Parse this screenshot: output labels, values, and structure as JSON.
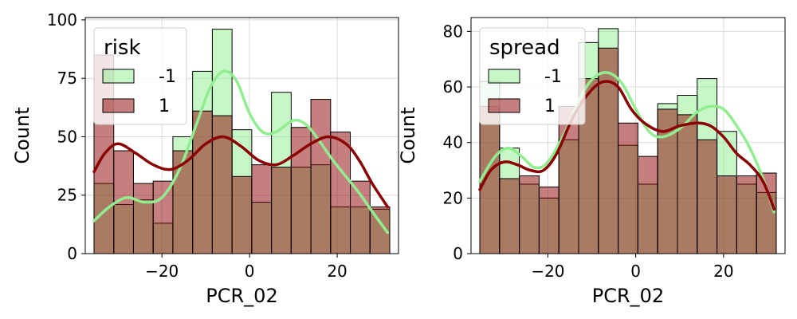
{
  "chart_data": [
    {
      "type": "histogram",
      "xlabel": "PCR_02",
      "ylabel": "Count",
      "xlim": [
        -37.5,
        34.0
      ],
      "ylim": [
        0,
        101
      ],
      "xticks": [
        -20,
        0,
        20
      ],
      "yticks": [
        0,
        25,
        50,
        75,
        100
      ],
      "grid": true,
      "bin_edges": [
        -35.5,
        -31.0,
        -26.5,
        -22.0,
        -17.5,
        -13.0,
        -8.5,
        -4.0,
        0.5,
        5.0,
        9.5,
        14.0,
        18.5,
        23.0,
        27.5,
        32.0
      ],
      "legend": {
        "title": "risk",
        "placement": "top-left"
      },
      "series": [
        {
          "name": "-1",
          "fill": "#90ee90",
          "kde": "#90ee90",
          "counts": [
            30,
            21,
            23,
            13,
            50,
            78,
            96,
            53,
            22,
            69,
            37,
            38,
            20,
            20,
            19
          ],
          "kde_curve": [
            [
              -35.5,
              14
            ],
            [
              -32,
              20
            ],
            [
              -28,
              24
            ],
            [
              -24,
              22
            ],
            [
              -20,
              24
            ],
            [
              -16,
              36
            ],
            [
              -12,
              56
            ],
            [
              -9,
              71
            ],
            [
              -6,
              78
            ],
            [
              -3,
              74
            ],
            [
              0,
              60
            ],
            [
              3,
              52
            ],
            [
              6,
              52
            ],
            [
              10,
              57
            ],
            [
              13,
              55
            ],
            [
              16,
              48
            ],
            [
              19,
              40
            ],
            [
              22,
              33
            ],
            [
              25,
              26
            ],
            [
              28,
              18
            ],
            [
              31.5,
              9
            ]
          ]
        },
        {
          "name": "1",
          "fill": "#8b0000",
          "kde": "#8b0000",
          "counts": [
            85,
            44,
            30,
            31,
            44,
            61,
            59,
            33,
            38,
            37,
            54,
            66,
            52,
            31,
            20
          ],
          "kde_curve": [
            [
              -35.5,
              35
            ],
            [
              -33,
              43
            ],
            [
              -30,
              47
            ],
            [
              -26,
              43
            ],
            [
              -22,
              38
            ],
            [
              -18,
              36
            ],
            [
              -14,
              40
            ],
            [
              -10,
              47
            ],
            [
              -6,
              50
            ],
            [
              -2,
              46
            ],
            [
              2,
              40
            ],
            [
              6,
              38
            ],
            [
              10,
              42
            ],
            [
              14,
              47
            ],
            [
              18,
              50
            ],
            [
              22,
              47
            ],
            [
              25,
              40
            ],
            [
              28,
              30
            ],
            [
              31.5,
              20
            ]
          ]
        }
      ]
    },
    {
      "type": "histogram",
      "xlabel": "PCR_02",
      "ylabel": "Count",
      "xlim": [
        -37.5,
        34.0
      ],
      "ylim": [
        0,
        85
      ],
      "xticks": [
        -20,
        0,
        20
      ],
      "yticks": [
        0,
        20,
        40,
        60,
        80
      ],
      "grid": true,
      "bin_edges": [
        -35.5,
        -31.0,
        -26.5,
        -22.0,
        -17.5,
        -13.0,
        -8.5,
        -4.0,
        0.5,
        5.0,
        9.5,
        14.0,
        18.5,
        23.0,
        27.5,
        32.0
      ],
      "legend": {
        "title": "spread",
        "placement": "top-left"
      },
      "series": [
        {
          "name": "-1",
          "fill": "#90ee90",
          "kde": "#90ee90",
          "counts": [
            62,
            38,
            25,
            20,
            41,
            76,
            81,
            39,
            25,
            54,
            57,
            63,
            44,
            25,
            22
          ],
          "kde_curve": [
            [
              -35.5,
              26
            ],
            [
              -32,
              35
            ],
            [
              -29,
              38
            ],
            [
              -26,
              35
            ],
            [
              -23,
              31
            ],
            [
              -20,
              33
            ],
            [
              -16,
              44
            ],
            [
              -12,
              58
            ],
            [
              -9,
              64
            ],
            [
              -6,
              65
            ],
            [
              -3,
              61
            ],
            [
              0,
              52
            ],
            [
              3,
              44
            ],
            [
              6,
              42
            ],
            [
              10,
              45
            ],
            [
              14,
              51
            ],
            [
              17,
              53
            ],
            [
              20,
              52
            ],
            [
              23,
              46
            ],
            [
              26,
              38
            ],
            [
              29,
              27
            ],
            [
              31.5,
              15
            ]
          ]
        },
        {
          "name": "1",
          "fill": "#8b0000",
          "kde": "#8b0000",
          "counts": [
            53,
            27,
            28,
            24,
            53,
            63,
            74,
            47,
            35,
            52,
            50,
            41,
            28,
            28,
            29
          ],
          "kde_curve": [
            [
              -35.5,
              23
            ],
            [
              -33,
              30
            ],
            [
              -30,
              33
            ],
            [
              -27,
              32
            ],
            [
              -24,
              30
            ],
            [
              -21,
              30
            ],
            [
              -18,
              36
            ],
            [
              -14,
              50
            ],
            [
              -10,
              59
            ],
            [
              -7,
              62
            ],
            [
              -4,
              60
            ],
            [
              -1,
              52
            ],
            [
              2,
              47
            ],
            [
              6,
              44
            ],
            [
              10,
              46
            ],
            [
              14,
              47
            ],
            [
              17,
              46
            ],
            [
              20,
              42
            ],
            [
              23,
              36
            ],
            [
              26,
              32
            ],
            [
              29,
              26
            ],
            [
              31.5,
              16
            ]
          ]
        }
      ]
    }
  ]
}
